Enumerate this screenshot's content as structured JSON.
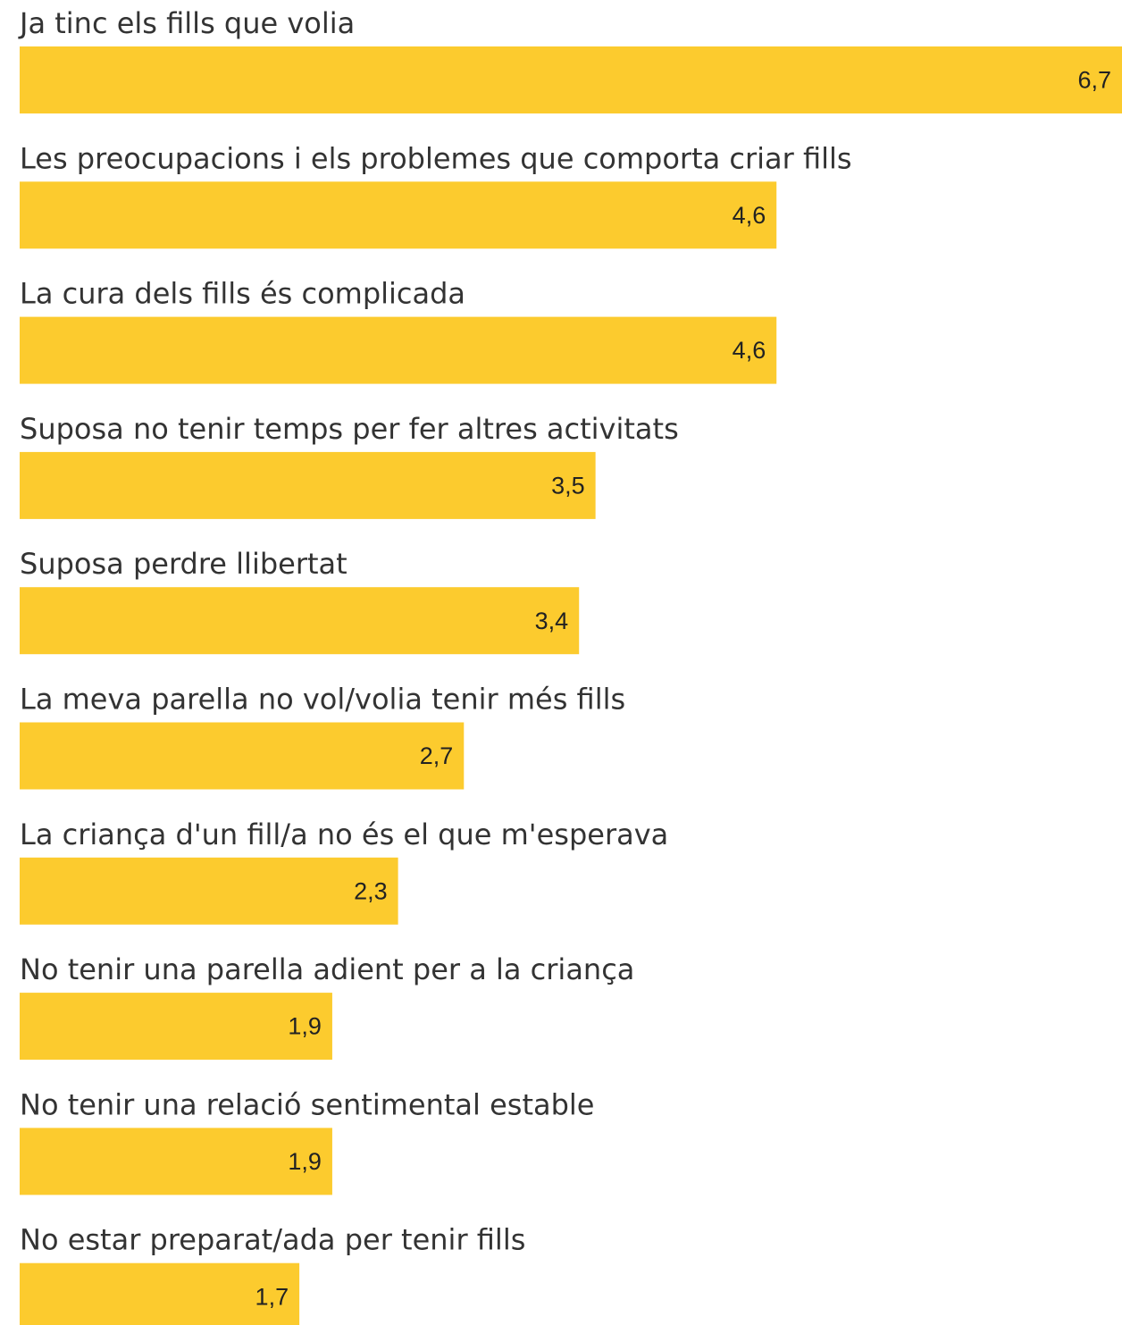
{
  "chart_data": {
    "type": "bar",
    "orientation": "horizontal",
    "categories": [
      "Ja tinc els fills que volia",
      "Les preocupacions i els problemes que comporta criar fills",
      "La cura dels fills és complicada",
      "Suposa no tenir temps per fer altres activitats",
      "Suposa perdre llibertat",
      "La meva parella no vol/volia tenir més fills",
      "La criança d'un fill/a no és el que m'esperava",
      "No tenir una parella adient per a la criança",
      "No tenir una relació sentimental estable",
      "No estar preparat/ada per tenir fills"
    ],
    "values": [
      6.7,
      4.6,
      4.6,
      3.5,
      3.4,
      2.7,
      2.3,
      1.9,
      1.9,
      1.7
    ],
    "value_labels": [
      "6,7",
      "4,6",
      "4,6",
      "3,5",
      "3,4",
      "2,7",
      "2,3",
      "1,9",
      "1,9",
      "1,7"
    ],
    "color": "#fccb2e",
    "xlim": [
      0,
      6.7
    ]
  }
}
